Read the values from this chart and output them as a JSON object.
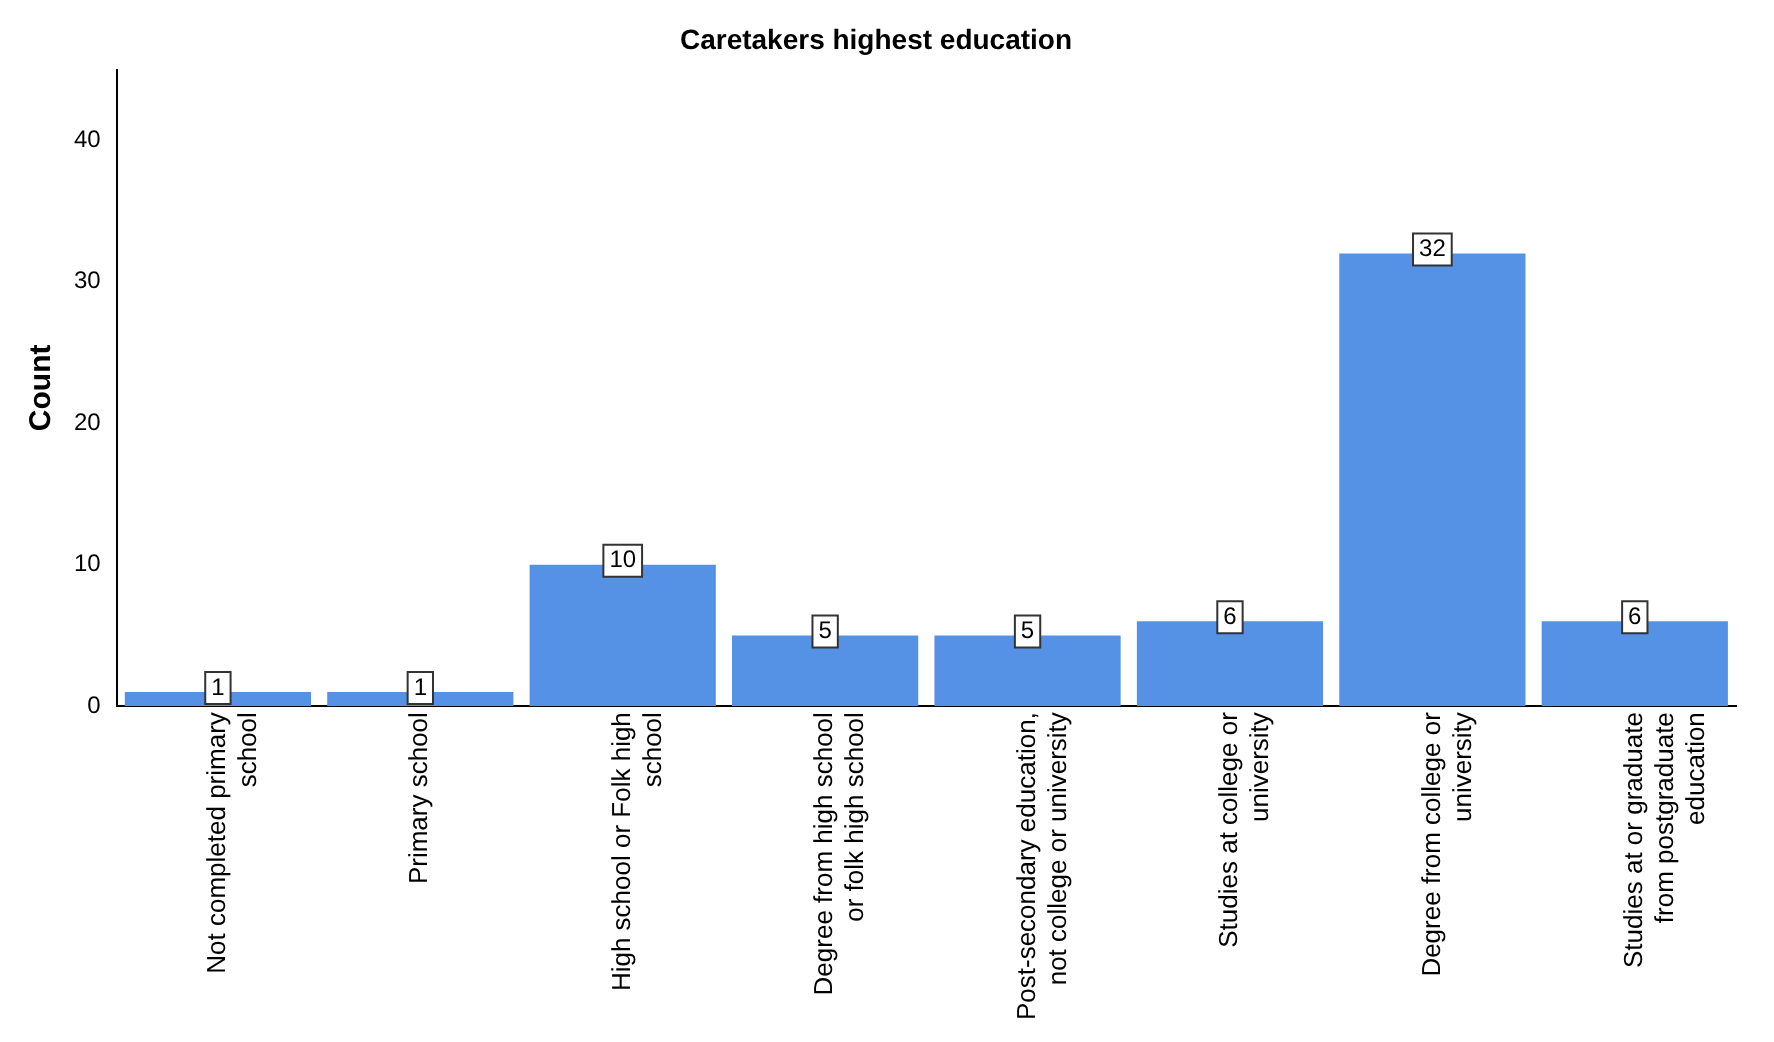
{
  "chart_data": {
    "type": "bar",
    "title": "Caretakers highest education",
    "ylabel": "Count",
    "categories": [
      "Not completed primary school",
      "Primary school",
      "High school or Folk high school",
      "Degree from high school or folk high school",
      "Post-secondary education, not college or university",
      "Studies at college or university",
      "Degree from college or university",
      "Studies at or graduate from postgraduate education"
    ],
    "values": [
      1,
      1,
      10,
      5,
      5,
      6,
      32,
      6
    ],
    "color": "#5592e5",
    "ylim": [
      0,
      45
    ],
    "yticks": [
      0,
      10,
      20,
      30,
      40
    ],
    "grid": false,
    "legend": false,
    "data_labels": true
  }
}
